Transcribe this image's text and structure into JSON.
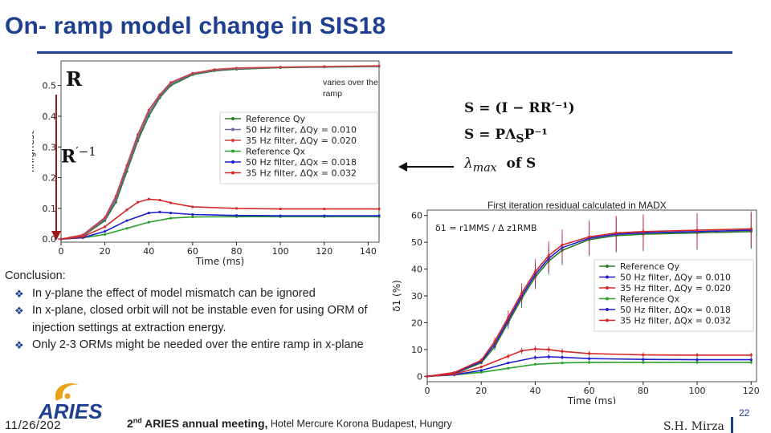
{
  "slide": {
    "title": "On- ramp model change in SIS18",
    "note_ramp": "varies over the ramp",
    "symbol_r": "R",
    "symbol_rinv_base": "R",
    "symbol_rinv_exp": "′−1",
    "eq1": "S = (I − RR′⁻¹)",
    "eq2": "S = PΛ",
    "eq2_sub": "S",
    "eq2_tail": "P⁻¹",
    "eq3_lambda": "λ",
    "eq3_sub": "max",
    "eq3_tail": "of  S",
    "residual_title": "First iteration residual calculated in MADX",
    "conclusion_head": "Conclusion:",
    "conclusion_items": [
      "In y-plane the effect of model mismatch can be ignored",
      "In x-plane, closed orbit will not be instable even for using ORM of injection settings at extraction energy.",
      "Only 2-3 ORMs might be needed over the entire ramp in x-plane"
    ],
    "bullet_glyph": "❖",
    "logo_text": "ARIES",
    "date": "11/26/202",
    "footer_meeting_pre": "2",
    "footer_meeting_sup": "nd",
    "footer_meeting_main": " ARIES annual meeting,",
    "footer_meeting_venue": " Hotel Mercure Korona Budapest, Hungry",
    "author": "S.H. Mirza",
    "page_number": "22"
  },
  "colors": {
    "title_blue": "#1f3f8f",
    "ref_qy": "#2a7a2a",
    "hz50_y": "#6a6aa8",
    "hz35_y": "#d04040",
    "ref_qx": "#2ca02c",
    "hz50_x": "#1f1fd0",
    "hz35_x": "#d62728",
    "logo_gold": "#e8a317",
    "logo_blue": "#1f3f8f"
  },
  "chart_data": [
    {
      "type": "line",
      "xlabel": "Time (ms)",
      "ylabel": "λhighest",
      "xlim": [
        0,
        145
      ],
      "ylim": [
        -0.01,
        0.58
      ],
      "xticks": [
        0,
        20,
        40,
        60,
        80,
        100,
        120,
        140
      ],
      "yticks": [
        0.0,
        0.1,
        0.2,
        0.3,
        0.4,
        0.5
      ],
      "legend_location": "center-right",
      "series": [
        {
          "name": "Reference Qy",
          "color": "#2a7a2a",
          "x": [
            0,
            10,
            20,
            25,
            30,
            35,
            40,
            45,
            50,
            60,
            70,
            80,
            100,
            120,
            145
          ],
          "y": [
            0,
            0.01,
            0.06,
            0.12,
            0.22,
            0.32,
            0.4,
            0.46,
            0.5,
            0.535,
            0.548,
            0.553,
            0.558,
            0.56,
            0.562
          ]
        },
        {
          "name": "50 Hz filter, ΔQy = 0.010",
          "color": "#6a6aa8",
          "x": [
            0,
            10,
            20,
            25,
            30,
            35,
            40,
            45,
            50,
            60,
            70,
            80,
            100,
            120,
            145
          ],
          "y": [
            0,
            0.012,
            0.065,
            0.13,
            0.23,
            0.33,
            0.41,
            0.465,
            0.505,
            0.538,
            0.55,
            0.555,
            0.559,
            0.561,
            0.563
          ]
        },
        {
          "name": "35 Hz filter, ΔQy = 0.020",
          "color": "#d04040",
          "x": [
            0,
            10,
            20,
            25,
            30,
            35,
            40,
            45,
            50,
            60,
            70,
            80,
            100,
            120,
            145
          ],
          "y": [
            0,
            0.014,
            0.07,
            0.14,
            0.24,
            0.34,
            0.42,
            0.47,
            0.51,
            0.54,
            0.552,
            0.557,
            0.56,
            0.562,
            0.564
          ]
        },
        {
          "name": "Reference Qx",
          "color": "#2ca02c",
          "x": [
            0,
            10,
            20,
            30,
            40,
            50,
            60,
            80,
            100,
            120,
            145
          ],
          "y": [
            0,
            0.004,
            0.015,
            0.035,
            0.055,
            0.068,
            0.072,
            0.073,
            0.073,
            0.073,
            0.073
          ]
        },
        {
          "name": "50 Hz filter, ΔQx = 0.018",
          "color": "#1f1fd0",
          "x": [
            0,
            10,
            20,
            30,
            40,
            45,
            50,
            60,
            80,
            100,
            120,
            145
          ],
          "y": [
            0,
            0.005,
            0.025,
            0.06,
            0.085,
            0.088,
            0.085,
            0.08,
            0.077,
            0.076,
            0.076,
            0.076
          ]
        },
        {
          "name": "35 Hz filter, ΔQx = 0.032",
          "color": "#d62728",
          "x": [
            0,
            10,
            20,
            30,
            35,
            40,
            45,
            50,
            60,
            80,
            100,
            120,
            145
          ],
          "y": [
            0,
            0.008,
            0.04,
            0.095,
            0.12,
            0.13,
            0.127,
            0.118,
            0.105,
            0.1,
            0.098,
            0.098,
            0.098
          ]
        }
      ]
    },
    {
      "type": "line",
      "xlabel": "Time (ms)",
      "ylabel": "δ1 (%)",
      "annotation": "δ1 = r1MMS / Δ z1RMB",
      "xlim": [
        0,
        122
      ],
      "ylim": [
        -2,
        62
      ],
      "xticks": [
        0,
        20,
        40,
        60,
        80,
        100,
        120
      ],
      "yticks": [
        0,
        10,
        20,
        30,
        40,
        50,
        60
      ],
      "legend_location": "right",
      "series": [
        {
          "name": "Reference Qy",
          "color": "#2a7a2a",
          "x": [
            0,
            10,
            20,
            25,
            30,
            35,
            40,
            45,
            50,
            60,
            70,
            80,
            100,
            120
          ],
          "y": [
            0,
            1,
            5,
            11,
            20,
            29,
            37,
            43,
            47,
            51,
            52.5,
            53,
            53.5,
            54
          ]
        },
        {
          "name": "50 Hz filter, ΔQy = 0.010",
          "color": "#1f1fd0",
          "x": [
            0,
            10,
            20,
            25,
            30,
            35,
            40,
            45,
            50,
            60,
            70,
            80,
            100,
            120
          ],
          "y": [
            0,
            1.2,
            5.5,
            12,
            21,
            30,
            38,
            44,
            48,
            51.5,
            53,
            53.5,
            54,
            54.5
          ]
        },
        {
          "name": "35 Hz filter, ΔQy = 0.020",
          "color": "#d62728",
          "x": [
            0,
            10,
            20,
            25,
            30,
            35,
            40,
            45,
            50,
            60,
            70,
            80,
            100,
            120
          ],
          "y": [
            0,
            1.4,
            6,
            13,
            22,
            31,
            39,
            45,
            49,
            52,
            53.5,
            54,
            54.5,
            55
          ]
        },
        {
          "name": "Reference Qx",
          "color": "#2ca02c",
          "x": [
            0,
            10,
            20,
            30,
            40,
            50,
            60,
            80,
            100,
            120
          ],
          "y": [
            0,
            0.5,
            1.5,
            3,
            4.5,
            5,
            5.2,
            5.2,
            5.2,
            5.2
          ]
        },
        {
          "name": "50 Hz filter, ΔQx = 0.018",
          "color": "#1f1fd0",
          "x": [
            0,
            10,
            20,
            30,
            40,
            45,
            50,
            60,
            80,
            100,
            120
          ],
          "y": [
            0,
            0.6,
            2.2,
            5,
            7,
            7.3,
            7.1,
            6.6,
            6.3,
            6.2,
            6.2
          ]
        },
        {
          "name": "35 Hz filter, ΔQx = 0.032",
          "color": "#d62728",
          "x": [
            0,
            10,
            20,
            30,
            35,
            40,
            45,
            50,
            60,
            80,
            100,
            120
          ],
          "y": [
            0,
            0.8,
            3.5,
            7.5,
            9.5,
            10.2,
            10,
            9.3,
            8.5,
            8,
            7.9,
            7.9
          ]
        }
      ]
    }
  ]
}
